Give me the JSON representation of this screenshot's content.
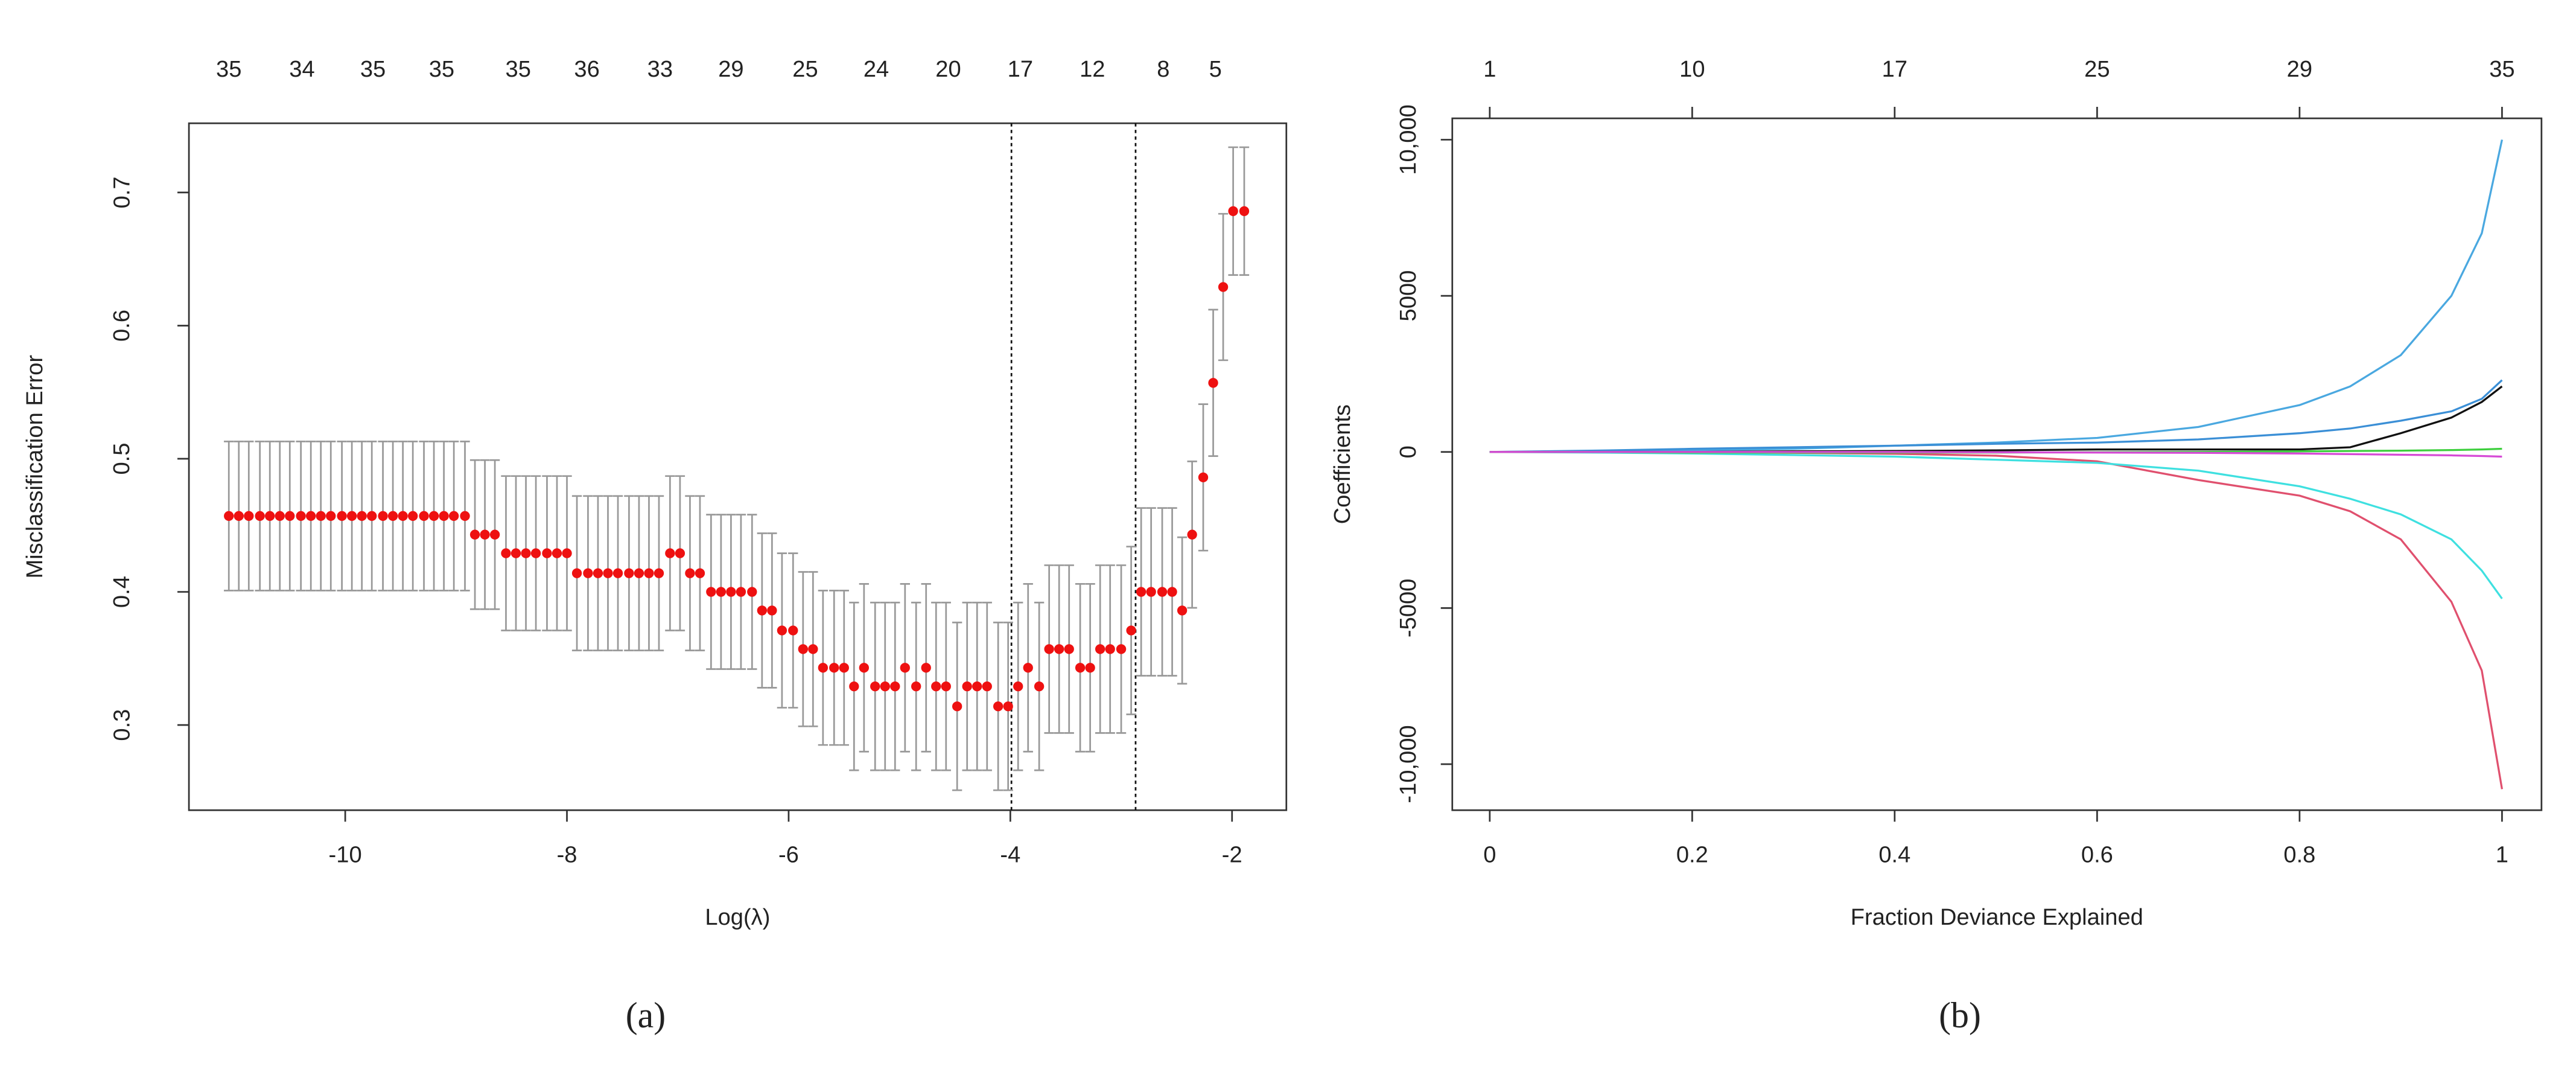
{
  "chart_data": [
    {
      "type": "scatter",
      "caption": "(a)",
      "x_label": "Log(λ)",
      "y_label": "Misclassification Error",
      "color": "#ee1111",
      "error_color": "#999999",
      "x": [
        -11.05,
        -10.96,
        -10.87,
        -10.77,
        -10.68,
        -10.59,
        -10.5,
        -10.4,
        -10.31,
        -10.22,
        -10.13,
        -10.03,
        -9.94,
        -9.85,
        -9.76,
        -9.66,
        -9.57,
        -9.48,
        -9.39,
        -9.29,
        -9.2,
        -9.11,
        -9.02,
        -8.92,
        -8.83,
        -8.74,
        -8.65,
        -8.55,
        -8.46,
        -8.37,
        -8.28,
        -8.18,
        -8.09,
        -8.0,
        -7.91,
        -7.81,
        -7.72,
        -7.63,
        -7.54,
        -7.44,
        -7.35,
        -7.26,
        -7.17,
        -7.07,
        -6.98,
        -6.89,
        -6.8,
        -6.7,
        -6.61,
        -6.52,
        -6.43,
        -6.33,
        -6.24,
        -6.15,
        -6.06,
        -5.96,
        -5.87,
        -5.78,
        -5.69,
        -5.59,
        -5.5,
        -5.41,
        -5.32,
        -5.22,
        -5.13,
        -5.04,
        -4.95,
        -4.85,
        -4.76,
        -4.67,
        -4.58,
        -4.48,
        -4.39,
        -4.3,
        -4.21,
        -4.11,
        -4.02,
        -3.93,
        -3.84,
        -3.74,
        -3.65,
        -3.56,
        -3.47,
        -3.37,
        -3.28,
        -3.19,
        -3.1,
        -3.0,
        -2.91,
        -2.82,
        -2.73,
        -2.63,
        -2.54,
        -2.45,
        -2.36,
        -2.26,
        -2.17,
        -2.08,
        -1.99,
        -1.89
      ],
      "values": [
        0.457,
        0.457,
        0.457,
        0.457,
        0.457,
        0.457,
        0.457,
        0.457,
        0.457,
        0.457,
        0.457,
        0.457,
        0.457,
        0.457,
        0.457,
        0.457,
        0.457,
        0.457,
        0.457,
        0.457,
        0.457,
        0.457,
        0.457,
        0.457,
        0.443,
        0.443,
        0.443,
        0.429,
        0.429,
        0.429,
        0.429,
        0.429,
        0.429,
        0.429,
        0.414,
        0.414,
        0.414,
        0.414,
        0.414,
        0.414,
        0.414,
        0.414,
        0.414,
        0.429,
        0.429,
        0.414,
        0.414,
        0.4,
        0.4,
        0.4,
        0.4,
        0.4,
        0.386,
        0.386,
        0.371,
        0.371,
        0.357,
        0.357,
        0.343,
        0.343,
        0.343,
        0.329,
        0.343,
        0.329,
        0.329,
        0.329,
        0.343,
        0.329,
        0.343,
        0.329,
        0.329,
        0.314,
        0.329,
        0.329,
        0.329,
        0.314,
        0.314,
        0.329,
        0.343,
        0.329,
        0.357,
        0.357,
        0.357,
        0.343,
        0.343,
        0.357,
        0.357,
        0.357,
        0.371,
        0.4,
        0.4,
        0.4,
        0.4,
        0.386,
        0.443,
        0.486,
        0.557,
        0.629,
        0.686,
        0.686
      ],
      "errors": [
        0.056,
        0.056,
        0.056,
        0.056,
        0.056,
        0.056,
        0.056,
        0.056,
        0.056,
        0.056,
        0.056,
        0.056,
        0.056,
        0.056,
        0.056,
        0.056,
        0.056,
        0.056,
        0.056,
        0.056,
        0.056,
        0.056,
        0.056,
        0.056,
        0.056,
        0.056,
        0.056,
        0.058,
        0.058,
        0.058,
        0.058,
        0.058,
        0.058,
        0.058,
        0.058,
        0.058,
        0.058,
        0.058,
        0.058,
        0.058,
        0.058,
        0.058,
        0.058,
        0.058,
        0.058,
        0.058,
        0.058,
        0.058,
        0.058,
        0.058,
        0.058,
        0.058,
        0.058,
        0.058,
        0.058,
        0.058,
        0.058,
        0.058,
        0.058,
        0.058,
        0.058,
        0.063,
        0.063,
        0.063,
        0.063,
        0.063,
        0.063,
        0.063,
        0.063,
        0.063,
        0.063,
        0.063,
        0.063,
        0.063,
        0.063,
        0.063,
        0.063,
        0.063,
        0.063,
        0.063,
        0.063,
        0.063,
        0.063,
        0.063,
        0.063,
        0.063,
        0.063,
        0.063,
        0.063,
        0.063,
        0.063,
        0.063,
        0.063,
        0.055,
        0.055,
        0.055,
        0.055,
        0.055,
        0.048,
        0.048
      ],
      "vlines": [
        -3.99,
        -2.87
      ],
      "xlim": [
        -11.41,
        -1.51
      ],
      "xticks": [
        -10,
        -8,
        -6,
        -4,
        -2
      ],
      "ylim": [
        0.236,
        0.752
      ],
      "yticks": [
        0.3,
        0.4,
        0.5,
        0.6,
        0.7
      ],
      "top_ticks": [
        {
          "value": -11.05,
          "label": "35"
        },
        {
          "value": -10.39,
          "label": "34"
        },
        {
          "value": -9.75,
          "label": "35"
        },
        {
          "value": -9.13,
          "label": "35"
        },
        {
          "value": -8.44,
          "label": "35"
        },
        {
          "value": -7.82,
          "label": "36"
        },
        {
          "value": -7.16,
          "label": "33"
        },
        {
          "value": -6.52,
          "label": "29"
        },
        {
          "value": -5.85,
          "label": "25"
        },
        {
          "value": -5.21,
          "label": "24"
        },
        {
          "value": -4.56,
          "label": "20"
        },
        {
          "value": -3.91,
          "label": "17"
        },
        {
          "value": -3.26,
          "label": "12"
        },
        {
          "value": -2.62,
          "label": "8"
        },
        {
          "value": -2.15,
          "label": "5"
        }
      ]
    },
    {
      "type": "line",
      "caption": "(b)",
      "x_label": "Fraction Deviance Explained",
      "y_label": "Coefficients",
      "x": [
        0,
        0.1,
        0.2,
        0.3,
        0.4,
        0.5,
        0.6,
        0.7,
        0.8,
        0.85,
        0.9,
        0.95,
        0.98,
        1.0
      ],
      "series": [
        {
          "color": "#4aa8e0",
          "values": [
            0,
            20,
            50,
            100,
            200,
            300,
            450,
            800,
            1500,
            2100,
            3100,
            5000,
            7000,
            10000
          ]
        },
        {
          "color": "#e0506e",
          "values": [
            0,
            0,
            -10,
            -30,
            -60,
            -120,
            -300,
            -900,
            -1400,
            -1900,
            -2800,
            -4800,
            -7000,
            -10800
          ]
        },
        {
          "color": "#3fe0e0",
          "values": [
            0,
            -20,
            -50,
            -100,
            -150,
            -250,
            -350,
            -600,
            -1100,
            -1500,
            -2000,
            -2800,
            -3800,
            -4700
          ]
        },
        {
          "color": "#3b8fd6",
          "values": [
            0,
            40,
            100,
            150,
            200,
            260,
            300,
            400,
            600,
            750,
            1000,
            1300,
            1700,
            2300
          ]
        },
        {
          "color": "#111111",
          "values": [
            0,
            0,
            0,
            20,
            30,
            50,
            80,
            80,
            80,
            150,
            600,
            1100,
            1600,
            2100
          ]
        },
        {
          "color": "#3ecf3e",
          "values": [
            0,
            0,
            -20,
            -20,
            -20,
            -20,
            -10,
            0,
            20,
            30,
            40,
            60,
            80,
            100
          ]
        },
        {
          "color": "#d64ad6",
          "values": [
            0,
            0,
            0,
            0,
            0,
            -10,
            -20,
            -30,
            -50,
            -70,
            -90,
            -110,
            -130,
            -150
          ]
        }
      ],
      "xlim": [
        -0.037,
        1.039
      ],
      "xticks": [
        0,
        0.2,
        0.4,
        0.6,
        0.8,
        1
      ],
      "ylim": [
        -11474,
        10684
      ],
      "yticks": [
        {
          "value": -10000,
          "label": "-10,000"
        },
        {
          "value": -5000,
          "label": "-5000"
        },
        0,
        5000,
        {
          "value": 10000,
          "label": "10,000"
        }
      ],
      "top_ticks": [
        {
          "value": 0,
          "label": "1"
        },
        {
          "value": 0.2,
          "label": "10"
        },
        {
          "value": 0.4,
          "label": "17"
        },
        {
          "value": 0.6,
          "label": "25"
        },
        {
          "value": 0.8,
          "label": "29"
        },
        {
          "value": 1.0,
          "label": "35"
        }
      ]
    }
  ]
}
